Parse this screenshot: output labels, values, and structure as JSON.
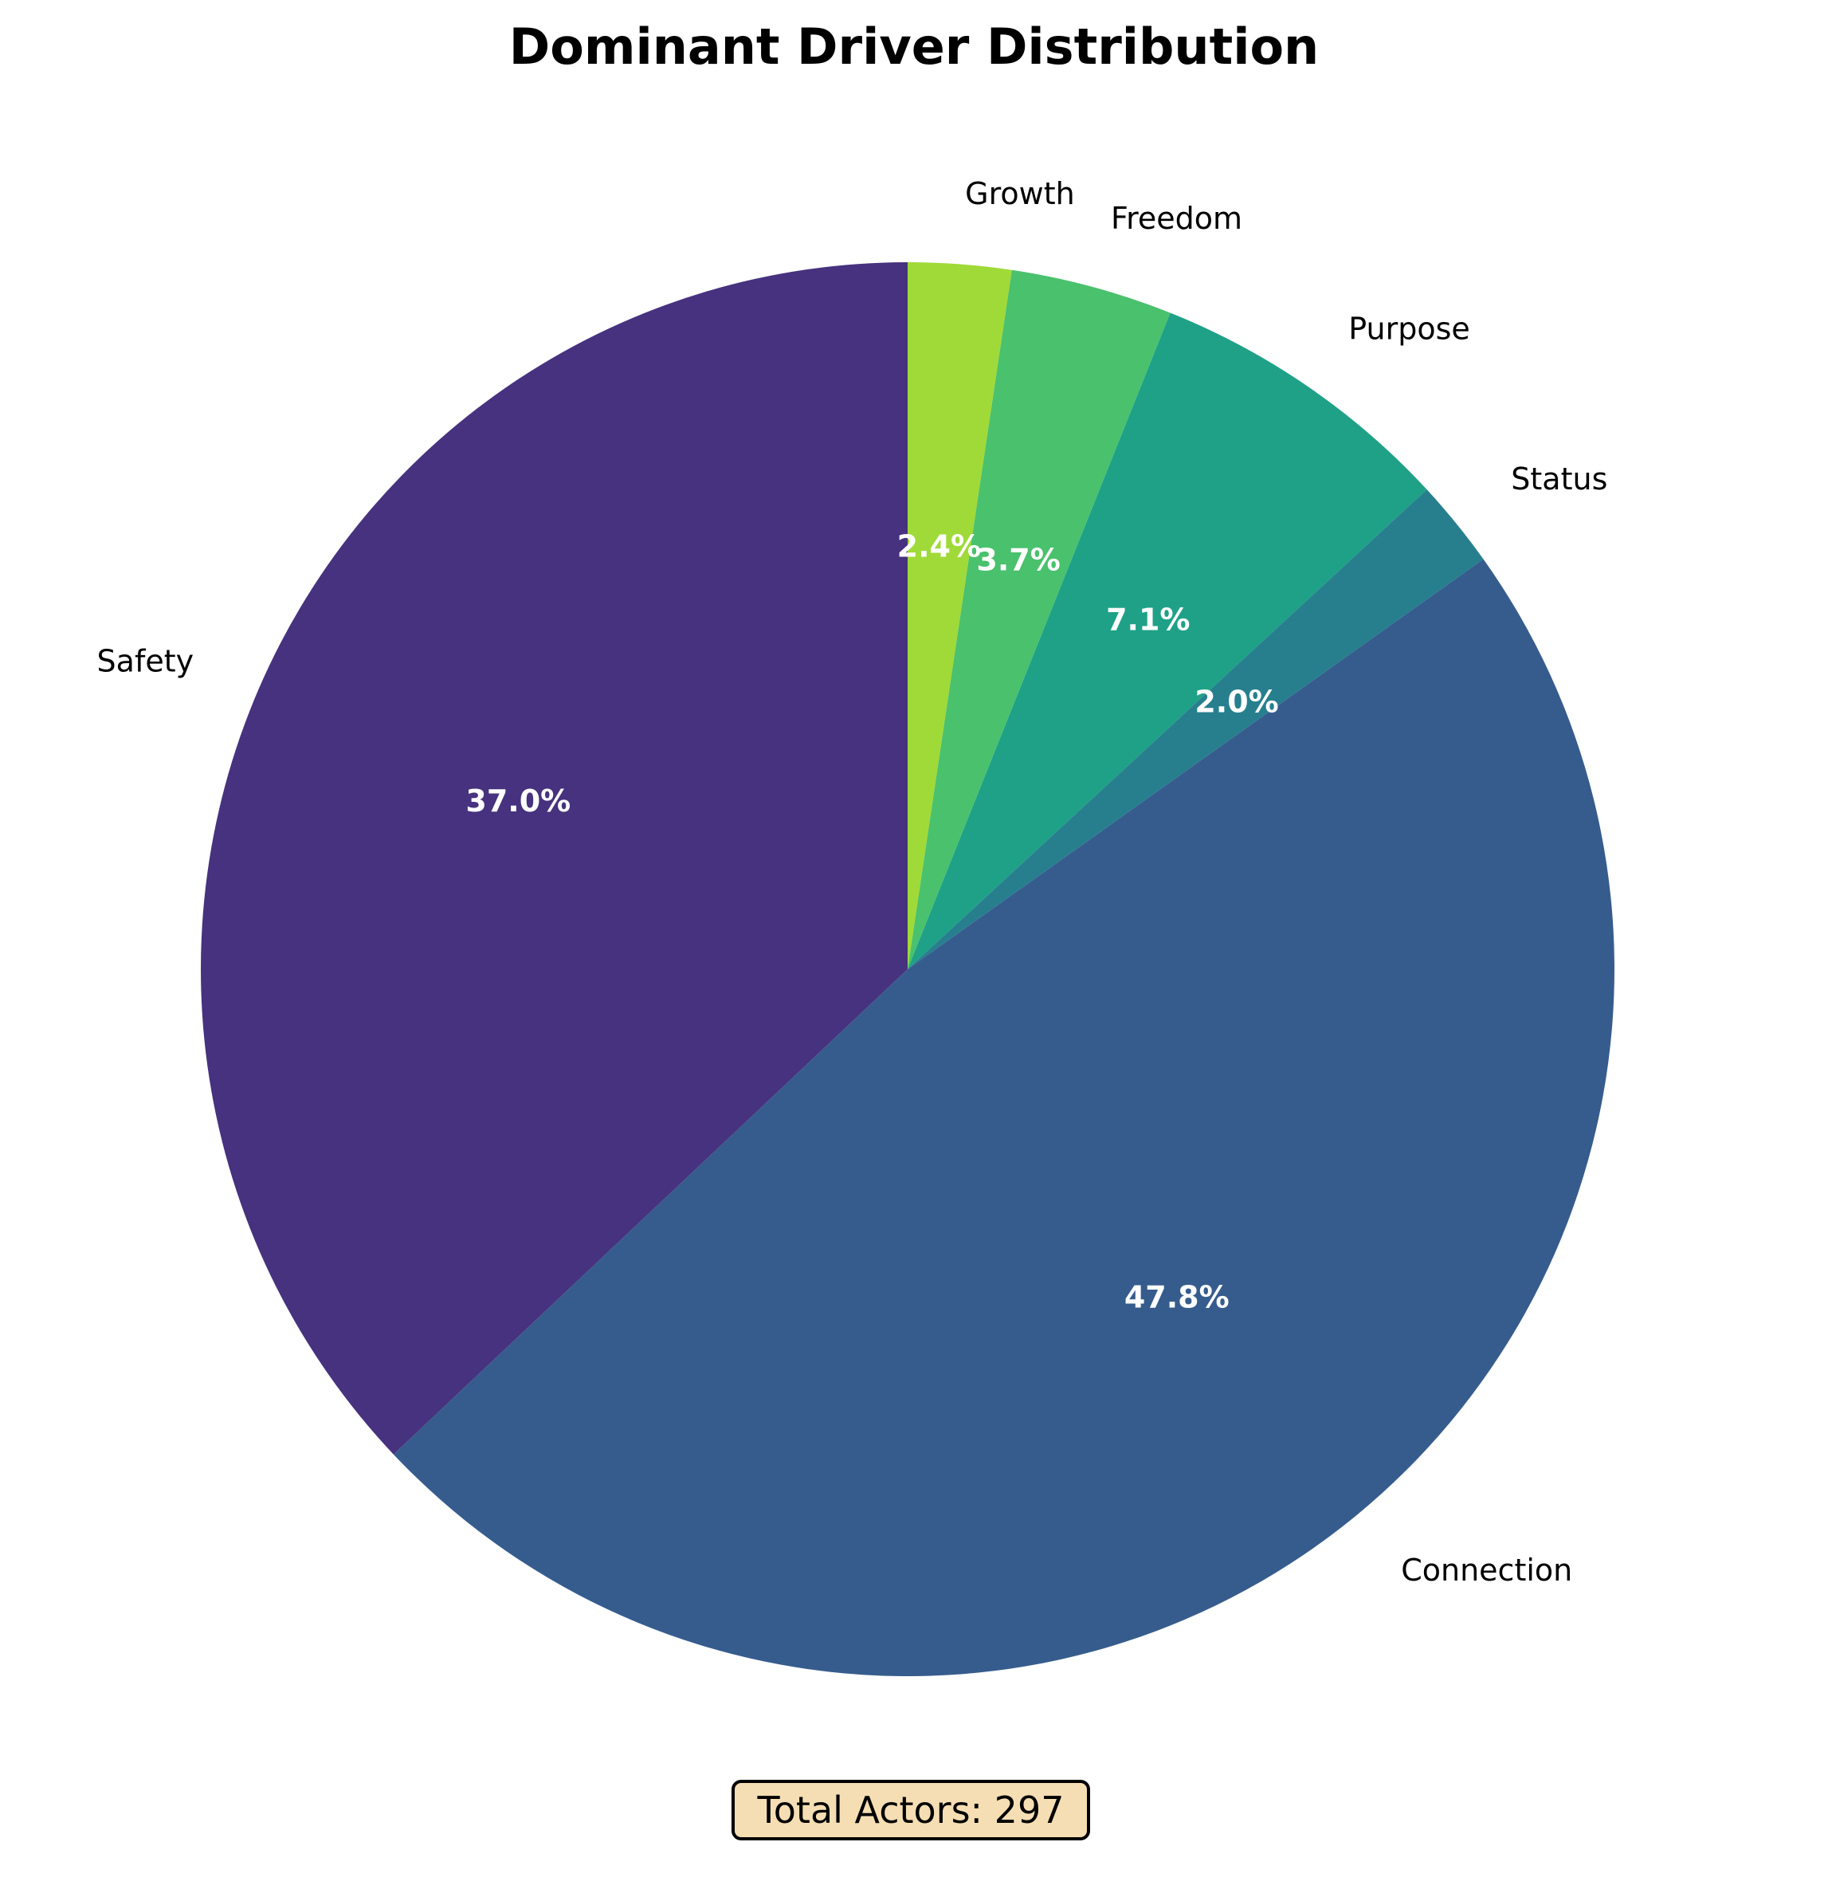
{
  "chart_data": {
    "type": "pie",
    "title": "Dominant Driver Distribution",
    "start_angle_deg": 90,
    "direction": "clockwise",
    "slices": [
      {
        "label": "Growth",
        "value": 7,
        "pct_label": "2.4%",
        "color": "#a0da39"
      },
      {
        "label": "Freedom",
        "value": 11,
        "pct_label": "3.7%",
        "color": "#4ac16d"
      },
      {
        "label": "Purpose",
        "value": 21,
        "pct_label": "7.1%",
        "color": "#1fa187"
      },
      {
        "label": "Status",
        "value": 6,
        "pct_label": "2.0%",
        "color": "#277f8e"
      },
      {
        "label": "Connection",
        "value": 142,
        "pct_label": "47.8%",
        "color": "#365c8d"
      },
      {
        "label": "Safety",
        "value": 110,
        "pct_label": "37.0%",
        "color": "#46327e"
      }
    ]
  },
  "annotation": {
    "total_text": "Total Actors: 297"
  }
}
